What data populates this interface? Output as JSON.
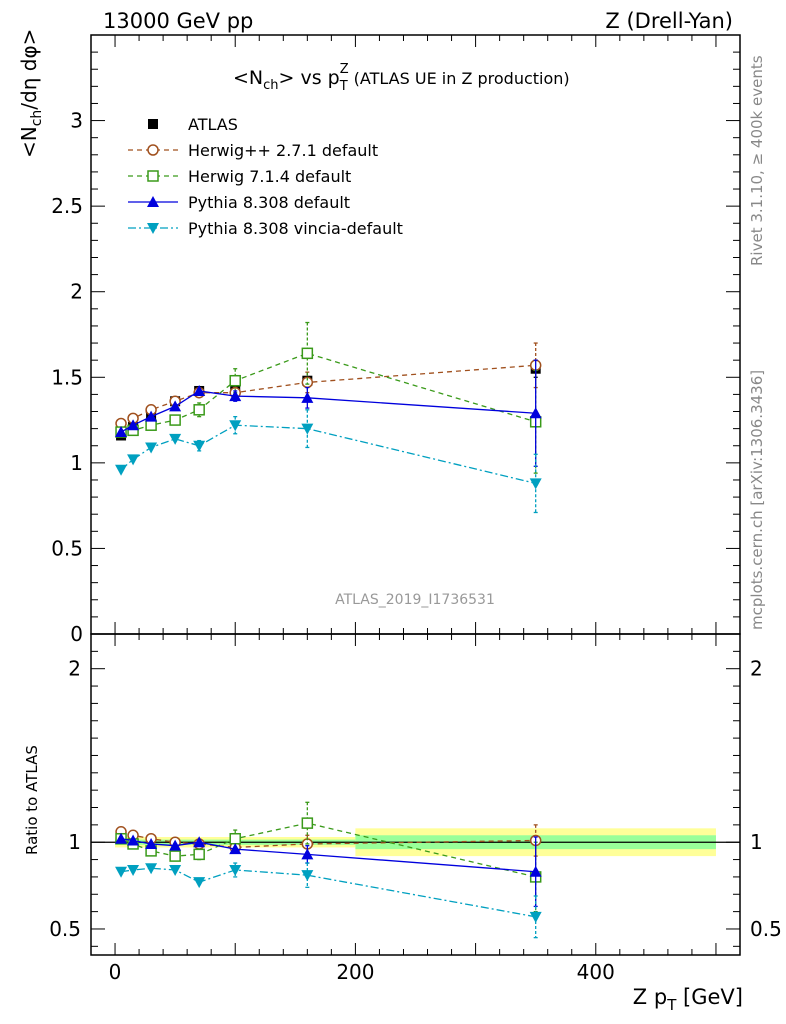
{
  "header": {
    "left": "13000 GeV pp",
    "right": "Z (Drell-Yan)"
  },
  "side_labels": {
    "rivet": "Rivet 3.1.10, ≥ 400k events",
    "mcplots": "mcplots.cern.ch [arXiv:1306.3436]"
  },
  "watermark": "ATLAS_2019_I1736531",
  "colors": {
    "atlas": "#000000",
    "herwigpp": "#a0501e",
    "herwig7": "#3a9a1a",
    "pythia": "#0000dd",
    "vincia": "#00a0c0",
    "band_yellow": "#ffff99",
    "band_green": "#99ff99"
  },
  "chart_data": [
    {
      "type": "line",
      "panel": "main",
      "title": {
        "pre": "<N",
        "sub1": "ch",
        "mid": "> vs p",
        "sub2": "T",
        "sup2": "Z",
        "post": " (ATLAS UE in Z production)"
      },
      "ylabel": {
        "a": "<N",
        "sub": "ch",
        "b": "/dη dφ>"
      },
      "xlim": [
        -20,
        520
      ],
      "ylim": [
        0,
        3.5
      ],
      "yticks": [
        0,
        0.5,
        1,
        1.5,
        2,
        2.5,
        3
      ],
      "ytick_labels": [
        "0",
        "0.5",
        "1",
        "1.5",
        "2",
        "2.5",
        "3"
      ],
      "legend_position": "top-left",
      "series": [
        {
          "name": "ATLAS",
          "key": "atlas",
          "marker": "square-filled",
          "x": [
            5,
            15,
            30,
            50,
            70,
            100,
            160,
            350
          ],
          "y": [
            1.16,
            1.21,
            1.28,
            1.36,
            1.42,
            1.45,
            1.48,
            1.55
          ],
          "err": [
            0.01,
            0.01,
            0.01,
            0.01,
            0.01,
            0.01,
            0.02,
            0.05
          ]
        },
        {
          "name": "Herwig++ 2.7.1 default",
          "key": "herwigpp",
          "marker": "circle-open",
          "dash": "5,4",
          "x": [
            5,
            15,
            30,
            50,
            70,
            100,
            160,
            350
          ],
          "y": [
            1.23,
            1.26,
            1.31,
            1.36,
            1.41,
            1.41,
            1.47,
            1.57
          ],
          "err": [
            0.01,
            0.01,
            0.01,
            0.01,
            0.02,
            0.03,
            0.06,
            0.13
          ]
        },
        {
          "name": "Herwig 7.1.4 default",
          "key": "herwig7",
          "marker": "square-open",
          "dash": "5,4",
          "x": [
            5,
            15,
            30,
            50,
            70,
            100,
            160,
            350
          ],
          "y": [
            1.18,
            1.19,
            1.22,
            1.25,
            1.31,
            1.48,
            1.64,
            1.24
          ],
          "err": [
            0.01,
            0.01,
            0.02,
            0.02,
            0.04,
            0.07,
            0.18,
            0.3
          ]
        },
        {
          "name": "Pythia 8.308 default",
          "key": "pythia",
          "marker": "triangle-up",
          "dash": "",
          "x": [
            5,
            15,
            30,
            50,
            70,
            100,
            160,
            350
          ],
          "y": [
            1.18,
            1.22,
            1.27,
            1.33,
            1.42,
            1.39,
            1.38,
            1.29
          ],
          "err": [
            0.01,
            0.01,
            0.01,
            0.01,
            0.02,
            0.03,
            0.06,
            0.31
          ]
        },
        {
          "name": "Pythia 8.308 vincia-default",
          "key": "vincia",
          "marker": "triangle-down",
          "dash": "8,3,2,3",
          "x": [
            5,
            15,
            30,
            50,
            70,
            100,
            160,
            350
          ],
          "y": [
            0.96,
            1.02,
            1.09,
            1.14,
            1.1,
            1.22,
            1.2,
            0.88
          ],
          "err": [
            0.01,
            0.01,
            0.01,
            0.02,
            0.03,
            0.05,
            0.11,
            0.17
          ]
        }
      ]
    },
    {
      "type": "line",
      "panel": "ratio",
      "ylabel": "Ratio to ATLAS",
      "xlabel": {
        "a": "Z p",
        "sub": "T",
        "b": " [GeV]"
      },
      "xlim": [
        -20,
        520
      ],
      "ylim": [
        0.35,
        2.2
      ],
      "xticks": [
        0,
        200,
        400
      ],
      "xtick_labels": [
        "0",
        "200",
        "400"
      ],
      "yticks": [
        0.5,
        1,
        2
      ],
      "ytick_labels": [
        "0.5",
        "1",
        "2"
      ],
      "bands": [
        {
          "x": [
            0,
            200
          ],
          "yellow": [
            0.97,
            1.03
          ],
          "green": [
            0.985,
            1.015
          ]
        },
        {
          "x": [
            200,
            500
          ],
          "yellow": [
            0.92,
            1.08
          ],
          "green": [
            0.96,
            1.04
          ]
        }
      ],
      "series": [
        {
          "key": "herwigpp",
          "marker": "circle-open",
          "dash": "5,4",
          "x": [
            5,
            15,
            30,
            50,
            70,
            100,
            160,
            350
          ],
          "y": [
            1.06,
            1.04,
            1.02,
            1.0,
            0.99,
            0.97,
            0.99,
            1.01
          ],
          "err": [
            0.01,
            0.01,
            0.01,
            0.01,
            0.02,
            0.03,
            0.05,
            0.09
          ]
        },
        {
          "key": "herwig7",
          "marker": "square-open",
          "dash": "5,4",
          "x": [
            5,
            15,
            30,
            50,
            70,
            100,
            160,
            350
          ],
          "y": [
            1.02,
            0.99,
            0.95,
            0.92,
            0.93,
            1.02,
            1.11,
            0.8
          ],
          "err": [
            0.01,
            0.01,
            0.02,
            0.02,
            0.03,
            0.05,
            0.12,
            0.2
          ]
        },
        {
          "key": "pythia",
          "marker": "triangle-up",
          "dash": "",
          "x": [
            5,
            15,
            30,
            50,
            70,
            100,
            160,
            350
          ],
          "y": [
            1.02,
            1.01,
            0.99,
            0.98,
            1.0,
            0.96,
            0.93,
            0.83
          ],
          "err": [
            0.01,
            0.01,
            0.01,
            0.01,
            0.02,
            0.02,
            0.05,
            0.2
          ]
        },
        {
          "key": "vincia",
          "marker": "triangle-down",
          "dash": "8,3,2,3",
          "x": [
            5,
            15,
            30,
            50,
            70,
            100,
            160,
            350
          ],
          "y": [
            0.83,
            0.84,
            0.85,
            0.84,
            0.77,
            0.84,
            0.81,
            0.57
          ],
          "err": [
            0.01,
            0.01,
            0.01,
            0.01,
            0.02,
            0.04,
            0.07,
            0.12
          ]
        }
      ]
    }
  ]
}
